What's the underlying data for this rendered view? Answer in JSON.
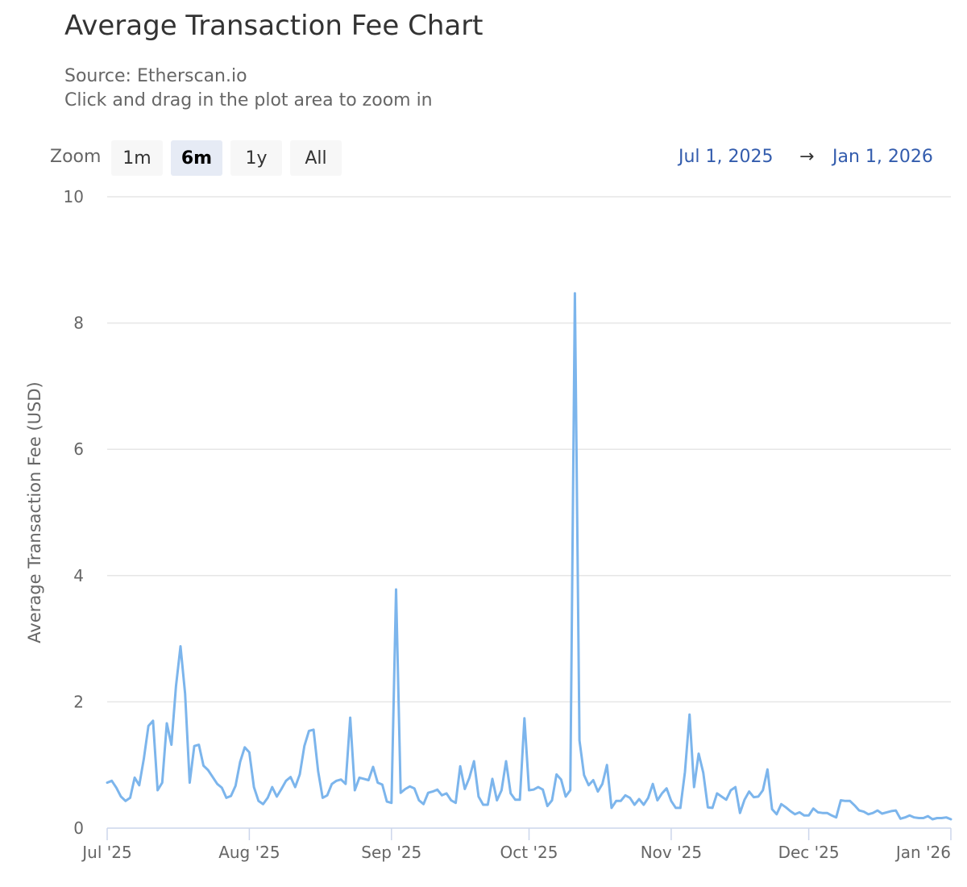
{
  "header": {
    "title": "Average Transaction Fee Chart",
    "source": "Source: Etherscan.io",
    "hint": "Click and drag in the plot area to zoom in"
  },
  "zoom": {
    "label": "Zoom",
    "buttons": [
      "1m",
      "6m",
      "1y",
      "All"
    ],
    "selected": "6m"
  },
  "range": {
    "from": "Jul 1, 2025",
    "arrow": "→",
    "to": "Jan 1, 2026"
  },
  "colors": {
    "line": "#7cb5ec",
    "grid": "#e6e6e6",
    "axis": "#ccd6eb",
    "range_text": "#335cad"
  },
  "chart_data": {
    "type": "line",
    "title": "Average Transaction Fee Chart",
    "ylabel": "Average Transaction Fee (USD)",
    "xlabel": "",
    "ylim": [
      0,
      10
    ],
    "yticks": [
      "0",
      "2",
      "4",
      "6",
      "8",
      "10"
    ],
    "xlim": [
      "2025-07-01",
      "2026-01-01"
    ],
    "xticks": [
      {
        "label": "Jul '25",
        "date": "2025-07-01"
      },
      {
        "label": "Aug '25",
        "date": "2025-08-01"
      },
      {
        "label": "Sep '25",
        "date": "2025-09-01"
      },
      {
        "label": "Oct '25",
        "date": "2025-10-01"
      },
      {
        "label": "Nov '25",
        "date": "2025-11-01"
      },
      {
        "label": "Dec '25",
        "date": "2025-12-01"
      },
      {
        "label": "Jan '26",
        "date": "2026-01-01"
      }
    ],
    "grid": true,
    "series": [
      {
        "x": [
          "2025-07-01",
          "2025-07-02",
          "2025-07-03",
          "2025-07-04",
          "2025-07-05",
          "2025-07-06",
          "2025-07-07",
          "2025-07-08",
          "2025-07-09",
          "2025-07-10",
          "2025-07-11",
          "2025-07-12",
          "2025-07-13",
          "2025-07-14",
          "2025-07-15",
          "2025-07-16",
          "2025-07-17",
          "2025-07-18",
          "2025-07-19",
          "2025-07-20",
          "2025-07-21",
          "2025-07-22",
          "2025-07-23",
          "2025-07-24",
          "2025-07-25",
          "2025-07-26",
          "2025-07-27",
          "2025-07-28",
          "2025-07-29",
          "2025-07-30",
          "2025-07-31",
          "2025-08-01",
          "2025-08-02",
          "2025-08-03",
          "2025-08-04",
          "2025-08-05",
          "2025-08-06",
          "2025-08-07",
          "2025-08-08",
          "2025-08-09",
          "2025-08-10",
          "2025-08-11",
          "2025-08-12",
          "2025-08-13",
          "2025-08-14",
          "2025-08-15",
          "2025-08-16",
          "2025-08-17",
          "2025-08-18",
          "2025-08-19",
          "2025-08-20",
          "2025-08-21",
          "2025-08-22",
          "2025-08-23",
          "2025-08-24",
          "2025-08-25",
          "2025-08-26",
          "2025-08-27",
          "2025-08-28",
          "2025-08-29",
          "2025-08-30",
          "2025-08-31",
          "2025-09-01",
          "2025-09-02",
          "2025-09-03",
          "2025-09-04",
          "2025-09-05",
          "2025-09-06",
          "2025-09-07",
          "2025-09-08",
          "2025-09-09",
          "2025-09-10",
          "2025-09-11",
          "2025-09-12",
          "2025-09-13",
          "2025-09-14",
          "2025-09-15",
          "2025-09-16",
          "2025-09-17",
          "2025-09-18",
          "2025-09-19",
          "2025-09-20",
          "2025-09-21",
          "2025-09-22",
          "2025-09-23",
          "2025-09-24",
          "2025-09-25",
          "2025-09-26",
          "2025-09-27",
          "2025-09-28",
          "2025-09-29",
          "2025-09-30",
          "2025-10-01",
          "2025-10-02",
          "2025-10-03",
          "2025-10-04",
          "2025-10-05",
          "2025-10-06",
          "2025-10-07",
          "2025-10-08",
          "2025-10-09",
          "2025-10-10",
          "2025-10-11",
          "2025-10-12",
          "2025-10-13",
          "2025-10-14",
          "2025-10-15",
          "2025-10-16",
          "2025-10-17",
          "2025-10-18",
          "2025-10-19",
          "2025-10-20",
          "2025-10-21",
          "2025-10-22",
          "2025-10-23",
          "2025-10-24",
          "2025-10-25",
          "2025-10-26",
          "2025-10-27",
          "2025-10-28",
          "2025-10-29",
          "2025-10-30",
          "2025-10-31",
          "2025-11-01",
          "2025-11-02",
          "2025-11-03",
          "2025-11-04",
          "2025-11-05",
          "2025-11-06",
          "2025-11-07",
          "2025-11-08",
          "2025-11-09",
          "2025-11-10",
          "2025-11-11",
          "2025-11-12",
          "2025-11-13",
          "2025-11-14",
          "2025-11-15",
          "2025-11-16",
          "2025-11-17",
          "2025-11-18",
          "2025-11-19",
          "2025-11-20",
          "2025-11-21",
          "2025-11-22",
          "2025-11-23",
          "2025-11-24",
          "2025-11-25",
          "2025-11-26",
          "2025-11-27",
          "2025-11-28",
          "2025-11-29",
          "2025-11-30",
          "2025-12-01",
          "2025-12-02",
          "2025-12-03",
          "2025-12-04",
          "2025-12-05",
          "2025-12-06",
          "2025-12-07",
          "2025-12-08",
          "2025-12-09",
          "2025-12-10",
          "2025-12-11",
          "2025-12-12",
          "2025-12-13",
          "2025-12-14",
          "2025-12-15",
          "2025-12-16",
          "2025-12-17",
          "2025-12-18",
          "2025-12-19",
          "2025-12-20",
          "2025-12-21",
          "2025-12-22",
          "2025-12-23",
          "2025-12-24",
          "2025-12-25",
          "2025-12-26",
          "2025-12-27",
          "2025-12-28",
          "2025-12-29",
          "2025-12-30",
          "2025-12-31",
          "2026-01-01"
        ],
        "y": [
          0.72,
          0.75,
          0.64,
          0.5,
          0.43,
          0.48,
          0.8,
          0.68,
          1.1,
          1.62,
          1.7,
          0.6,
          0.72,
          1.66,
          1.32,
          2.25,
          2.88,
          2.13,
          0.72,
          1.3,
          1.32,
          0.99,
          0.92,
          0.81,
          0.7,
          0.64,
          0.48,
          0.51,
          0.67,
          1.05,
          1.28,
          1.2,
          0.65,
          0.43,
          0.38,
          0.48,
          0.65,
          0.5,
          0.62,
          0.75,
          0.81,
          0.65,
          0.85,
          1.3,
          1.54,
          1.56,
          0.9,
          0.48,
          0.52,
          0.7,
          0.75,
          0.77,
          0.7,
          1.75,
          0.6,
          0.8,
          0.78,
          0.76,
          0.97,
          0.72,
          0.69,
          0.42,
          0.4,
          3.78,
          0.56,
          0.62,
          0.66,
          0.63,
          0.44,
          0.38,
          0.56,
          0.58,
          0.61,
          0.52,
          0.55,
          0.44,
          0.4,
          0.98,
          0.62,
          0.8,
          1.06,
          0.5,
          0.37,
          0.37,
          0.78,
          0.44,
          0.6,
          1.06,
          0.55,
          0.45,
          0.45,
          1.74,
          0.6,
          0.61,
          0.65,
          0.61,
          0.35,
          0.44,
          0.85,
          0.77,
          0.5,
          0.6,
          8.47,
          1.39,
          0.84,
          0.68,
          0.76,
          0.58,
          0.7,
          1.0,
          0.32,
          0.43,
          0.43,
          0.52,
          0.48,
          0.37,
          0.46,
          0.37,
          0.48,
          0.7,
          0.44,
          0.55,
          0.63,
          0.43,
          0.32,
          0.32,
          0.89,
          1.8,
          0.65,
          1.18,
          0.88,
          0.33,
          0.32,
          0.55,
          0.5,
          0.45,
          0.6,
          0.65,
          0.24,
          0.45,
          0.58,
          0.49,
          0.5,
          0.6,
          0.93,
          0.3,
          0.22,
          0.38,
          0.33,
          0.27,
          0.22,
          0.25,
          0.2,
          0.2,
          0.31,
          0.25,
          0.24,
          0.24,
          0.2,
          0.17,
          0.44,
          0.43,
          0.43,
          0.36,
          0.28,
          0.26,
          0.22,
          0.24,
          0.28,
          0.23,
          0.25,
          0.27,
          0.28,
          0.15,
          0.17,
          0.2,
          0.17,
          0.16,
          0.16,
          0.19,
          0.14,
          0.16,
          0.16,
          0.17,
          0.14
        ]
      }
    ]
  }
}
